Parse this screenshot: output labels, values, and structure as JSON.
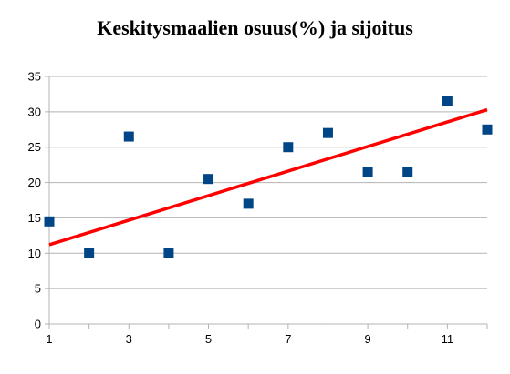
{
  "chart_data": {
    "type": "scatter",
    "title": "Keskitysmaalien osuus(%) ja sijoitus",
    "xlabel": "",
    "ylabel": "",
    "xlim": [
      1,
      12
    ],
    "ylim": [
      0,
      35
    ],
    "x_ticks": [
      "1",
      "3",
      "5",
      "7",
      "9",
      "11"
    ],
    "y_ticks": [
      "0",
      "5",
      "10",
      "15",
      "20",
      "25",
      "30",
      "35"
    ],
    "grid": "horizontal",
    "legend": "none",
    "series": [
      {
        "marker": "square",
        "color": "#004586",
        "x": [
          1,
          2,
          3,
          4,
          5,
          6,
          7,
          8,
          9,
          10,
          11,
          12
        ],
        "y": [
          14.5,
          10,
          26.5,
          10,
          20.5,
          17,
          25,
          27,
          21.5,
          21.5,
          31.5,
          27.5
        ]
      }
    ],
    "trendline": {
      "type": "linear",
      "color": "#ff0000",
      "x": [
        1,
        12
      ],
      "y": [
        11.2,
        30.3
      ]
    }
  }
}
